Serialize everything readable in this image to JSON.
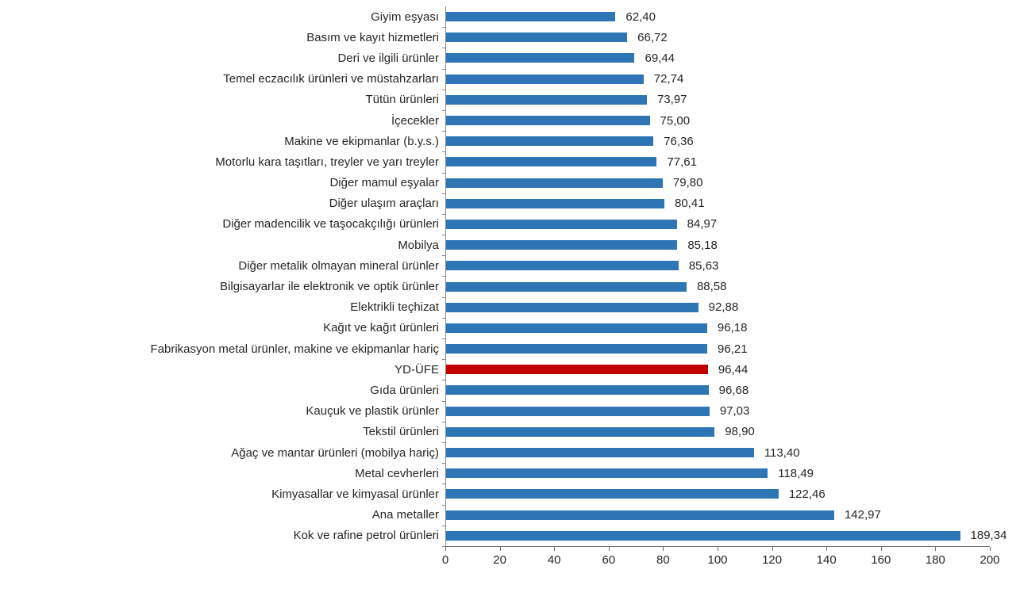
{
  "chart_data": {
    "type": "bar",
    "orientation": "horizontal",
    "title": "",
    "xlabel": "",
    "ylabel": "",
    "grid": false,
    "legend": false,
    "xlim": [
      0,
      200
    ],
    "x_ticks": [
      0,
      20,
      40,
      60,
      80,
      100,
      120,
      140,
      160,
      180,
      200
    ],
    "x_tick_labels": [
      "0",
      "20",
      "40",
      "60",
      "80",
      "100",
      "120",
      "140",
      "160",
      "180",
      "200"
    ],
    "categories": [
      "Giyim eşyası",
      "Basım ve kayıt hizmetleri",
      "Deri ve ilgili ürünler",
      "Temel eczacılık ürünleri ve müstahzarları",
      "Tütün ürünleri",
      "İçecekler",
      "Makine ve ekipmanlar (b.y.s.)",
      "Motorlu kara taşıtları, treyler ve yarı treyler",
      "Diğer mamul eşyalar",
      "Diğer ulaşım araçları",
      "Diğer madencilik ve taşocakçılığı ürünleri",
      "Mobilya",
      "Diğer metalik olmayan mineral ürünler",
      "Bilgisayarlar ile elektronik ve optik ürünler",
      "Elektrikli teçhizat",
      "Kağıt ve kağıt ürünleri",
      "Fabrikasyon metal ürünler, makine ve ekipmanlar hariç",
      "YD-ÜFE",
      "Gıda ürünleri",
      "Kauçuk ve plastik ürünler",
      "Tekstil ürünleri",
      "Ağaç ve mantar ürünleri (mobilya hariç)",
      "Metal cevherleri",
      "Kimyasallar ve kimyasal ürünler",
      "Ana metaller",
      "Kok ve rafine petrol ürünleri"
    ],
    "values": [
      62.4,
      66.72,
      69.44,
      72.74,
      73.97,
      75.0,
      76.36,
      77.61,
      79.8,
      80.41,
      84.97,
      85.18,
      85.63,
      88.58,
      92.88,
      96.18,
      96.21,
      96.44,
      96.68,
      97.03,
      98.9,
      113.4,
      118.49,
      122.46,
      142.97,
      189.34
    ],
    "value_labels": [
      "62,40",
      "66,72",
      "69,44",
      "72,74",
      "73,97",
      "75,00",
      "76,36",
      "77,61",
      "79,80",
      "80,41",
      "84,97",
      "85,18",
      "85,63",
      "88,58",
      "92,88",
      "96,18",
      "96,21",
      "96,44",
      "96,68",
      "97,03",
      "98,90",
      "113,40",
      "118,49",
      "122,46",
      "142,97",
      "189,34"
    ],
    "highlight_category": "YD-ÜFE",
    "highlight_index": 17,
    "colors": {
      "bar": "#2e75b6",
      "highlight": "#c00000",
      "axis": "#6f6f6f",
      "text": "#262626"
    }
  }
}
